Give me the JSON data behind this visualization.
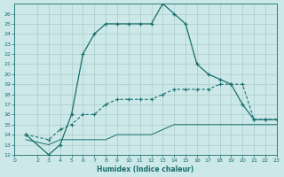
{
  "xlabel": "Humidex (Indice chaleur)",
  "background_color": "#cce8e8",
  "grid_color": "#b0d0d0",
  "line_color": "#1a6e6e",
  "xlim": [
    0,
    23
  ],
  "ylim": [
    12,
    27
  ],
  "xticks": [
    0,
    2,
    3,
    4,
    5,
    6,
    7,
    8,
    9,
    10,
    11,
    12,
    13,
    14,
    15,
    16,
    17,
    18,
    19,
    20,
    21,
    22,
    23
  ],
  "yticks": [
    12,
    13,
    14,
    15,
    16,
    17,
    18,
    19,
    20,
    21,
    22,
    23,
    24,
    25,
    26
  ],
  "line1_x": [
    1,
    3,
    4,
    5,
    6,
    7,
    8,
    9,
    10,
    11,
    12,
    13,
    14,
    15,
    16,
    17,
    18,
    19,
    20,
    21,
    22,
    23
  ],
  "line1_y": [
    14,
    12,
    13,
    16,
    22,
    24,
    25,
    25,
    25,
    25,
    25,
    27,
    26,
    25,
    21,
    20,
    19.5,
    19,
    17,
    15.5,
    15.5,
    15.5
  ],
  "line2_x": [
    1,
    3,
    4,
    5,
    6,
    7,
    8,
    9,
    10,
    11,
    12,
    13,
    14,
    15,
    16,
    17,
    18,
    19,
    20,
    21,
    22,
    23
  ],
  "line2_y": [
    14,
    13.5,
    14.5,
    15,
    16,
    16,
    17,
    17.5,
    17.5,
    17.5,
    17.5,
    18,
    18.5,
    18.5,
    18.5,
    18.5,
    19,
    19,
    19,
    15.5,
    15.5,
    15.5
  ],
  "line3_x": [
    1,
    3,
    4,
    5,
    6,
    7,
    8,
    9,
    10,
    11,
    12,
    13,
    14,
    15,
    16,
    17,
    18,
    19,
    20,
    21,
    22,
    23
  ],
  "line3_y": [
    13.5,
    13,
    13.5,
    13.5,
    13.5,
    13.5,
    13.5,
    14,
    14,
    14,
    14,
    14.5,
    15,
    15,
    15,
    15,
    15,
    15,
    15,
    15,
    15,
    15
  ]
}
